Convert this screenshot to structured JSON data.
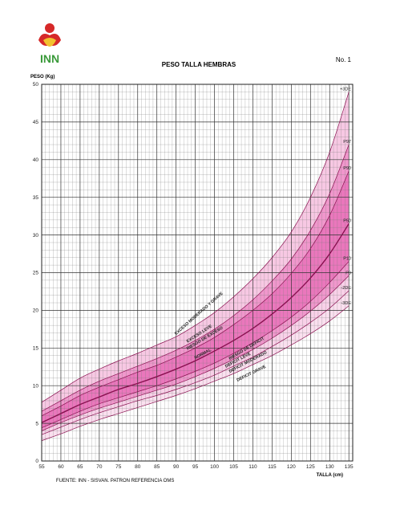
{
  "header": {
    "logo_text": "INN",
    "title": "PESO TALLA HEMBRAS",
    "sheet_number": "No. 1",
    "y_axis_label": "PESO (Kg)",
    "x_axis_label": "TALLA (cm)",
    "footer": "FUENTE: INN - SISVAN. PATRON REFERENCIA OMS"
  },
  "colors": {
    "pink_light": "#f6c2e0",
    "pink_mid": "#ee8cc6",
    "pink_strong": "#e34aa6",
    "curve": "#8a1050",
    "logo_red": "#d62828",
    "logo_yellow": "#f2c12e",
    "logo_green": "#3a9a3a"
  },
  "chart_data": {
    "type": "line",
    "title": "PESO TALLA HEMBRAS",
    "xlabel": "TALLA (cm)",
    "ylabel": "PESO (Kg)",
    "xlim": [
      55,
      136
    ],
    "ylim": [
      0,
      50
    ],
    "grid": true,
    "x_ticks": [
      55,
      60,
      65,
      70,
      75,
      80,
      85,
      90,
      95,
      100,
      105,
      110,
      115,
      120,
      125,
      130,
      135
    ],
    "y_ticks": [
      0,
      5,
      10,
      15,
      20,
      25,
      30,
      35,
      40,
      45,
      50
    ],
    "x": [
      55,
      60,
      65,
      70,
      75,
      80,
      85,
      90,
      95,
      100,
      105,
      110,
      115,
      120,
      125,
      130,
      135
    ],
    "series": [
      {
        "name": "+3DE",
        "values": [
          7.8,
          9.4,
          11.0,
          12.2,
          13.3,
          14.3,
          15.4,
          16.5,
          18.0,
          19.7,
          21.8,
          24.2,
          27.0,
          30.4,
          35.0,
          41.0,
          49.0
        ]
      },
      {
        "name": "P97",
        "values": [
          6.6,
          8.0,
          9.4,
          10.6,
          11.6,
          12.6,
          13.6,
          14.7,
          16.0,
          17.5,
          19.3,
          21.4,
          23.9,
          26.8,
          30.6,
          35.5,
          42.0
        ]
      },
      {
        "name": "P90",
        "values": [
          6.0,
          7.3,
          8.7,
          9.8,
          10.8,
          11.8,
          12.7,
          13.8,
          15.0,
          16.4,
          18.1,
          20.0,
          22.2,
          24.9,
          28.2,
          32.6,
          38.5
        ]
      },
      {
        "name": "P50",
        "values": [
          5.1,
          6.3,
          7.5,
          8.5,
          9.5,
          10.3,
          11.2,
          12.2,
          13.3,
          14.6,
          16.0,
          17.6,
          19.5,
          21.7,
          24.3,
          27.5,
          31.5
        ]
      },
      {
        "name": "P10",
        "values": [
          4.4,
          5.5,
          6.6,
          7.6,
          8.4,
          9.2,
          10.0,
          10.9,
          11.9,
          13.0,
          14.3,
          15.7,
          17.3,
          19.1,
          21.2,
          23.7,
          26.5
        ]
      },
      {
        "name": "P3",
        "values": [
          4.0,
          5.1,
          6.1,
          7.0,
          7.8,
          8.6,
          9.4,
          10.2,
          11.2,
          12.3,
          13.5,
          14.8,
          16.3,
          18.0,
          19.9,
          22.1,
          24.6
        ]
      },
      {
        "name": "-2DE",
        "values": [
          3.5,
          4.5,
          5.5,
          6.4,
          7.2,
          8.0,
          8.7,
          9.5,
          10.4,
          11.4,
          12.6,
          13.8,
          15.2,
          16.7,
          18.4,
          20.3,
          22.6
        ]
      },
      {
        "name": "-3DE",
        "values": [
          2.7,
          3.6,
          4.6,
          5.5,
          6.3,
          7.1,
          7.9,
          8.7,
          9.6,
          10.6,
          11.6,
          12.8,
          14.0,
          15.4,
          16.9,
          18.6,
          20.6
        ]
      }
    ],
    "band_labels": [
      "EXCESO MODERADO Y GRAVE",
      "EXCESO LEVE",
      "RIESGO DE EXCESO",
      "NORMAL",
      "RIESGO DE DEFICIT",
      "DEFICIT LEVE",
      "DEFICIT MODERADO",
      "DEFICIT GRAVE"
    ]
  }
}
